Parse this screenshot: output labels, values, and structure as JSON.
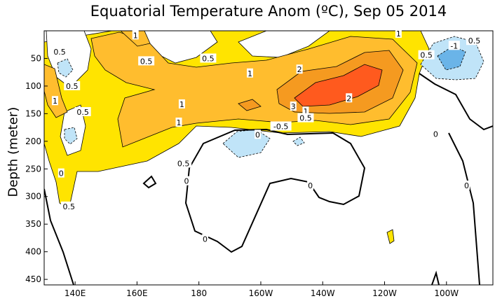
{
  "chart_data": {
    "type": "heatmap",
    "title": "Equatorial Temperature Anom (ºC), Sep 05 2014",
    "xlabel": "",
    "ylabel": "Depth (meter)",
    "xlim": [
      130,
      275
    ],
    "ylim": [
      0,
      460
    ],
    "y_inverted": true,
    "x_ticks": [
      {
        "value": 140,
        "label": "140E"
      },
      {
        "value": 160,
        "label": "160E"
      },
      {
        "value": 180,
        "label": "180"
      },
      {
        "value": 200,
        "label": "160W"
      },
      {
        "value": 220,
        "label": "140W"
      },
      {
        "value": 240,
        "label": "120W"
      },
      {
        "value": 260,
        "label": "100W"
      }
    ],
    "y_ticks": [
      {
        "value": 50,
        "label": "50"
      },
      {
        "value": 100,
        "label": "100"
      },
      {
        "value": 150,
        "label": "150"
      },
      {
        "value": 200,
        "label": "200"
      },
      {
        "value": 250,
        "label": "250"
      },
      {
        "value": 300,
        "label": "300"
      },
      {
        "value": 350,
        "label": "350"
      },
      {
        "value": 400,
        "label": "400"
      },
      {
        "value": 450,
        "label": "450"
      }
    ],
    "contour_levels": [
      -1,
      -0.5,
      0,
      0.5,
      1,
      2,
      3
    ],
    "colors": {
      "neg1": "#6ab4e8",
      "neg05": "#c0e4f8",
      "pos05": "#ffe400",
      "pos1": "#ffbd2e",
      "pos2": "#f59a20",
      "pos3": "#ff5a1e"
    },
    "contour_labels": [
      {
        "value": "1",
        "x": 159.5,
        "y": 8
      },
      {
        "value": "0.5",
        "x": 135,
        "y": 38
      },
      {
        "value": "0.5",
        "x": 163,
        "y": 55
      },
      {
        "value": "0.5",
        "x": 183,
        "y": 50
      },
      {
        "value": "0.5",
        "x": 139,
        "y": 100
      },
      {
        "value": "1",
        "x": 133.5,
        "y": 127
      },
      {
        "value": "0.5",
        "x": 142.5,
        "y": 147
      },
      {
        "value": "1",
        "x": 196.5,
        "y": 77
      },
      {
        "value": "2",
        "x": 212.5,
        "y": 70
      },
      {
        "value": "1",
        "x": 174.5,
        "y": 133
      },
      {
        "value": "1",
        "x": 173.5,
        "y": 166
      },
      {
        "value": "3",
        "x": 210.5,
        "y": 137
      },
      {
        "value": "1",
        "x": 214.5,
        "y": 146
      },
      {
        "value": "0.5",
        "x": 214.5,
        "y": 158
      },
      {
        "value": "2",
        "x": 228.5,
        "y": 122
      },
      {
        "value": "-0.5",
        "x": 206.5,
        "y": 173
      },
      {
        "value": "0.5",
        "x": 175,
        "y": 240
      },
      {
        "value": "0.5",
        "x": 138,
        "y": 318
      },
      {
        "value": "1",
        "x": 244.5,
        "y": 5
      },
      {
        "value": "0.5",
        "x": 269,
        "y": 18
      },
      {
        "value": "-1",
        "x": 262.5,
        "y": 27
      },
      {
        "value": "0.5",
        "x": 253.5,
        "y": 44
      },
      {
        "value": "0",
        "x": 135.5,
        "y": 258
      },
      {
        "value": "0",
        "x": 199,
        "y": 188
      },
      {
        "value": "0",
        "x": 176,
        "y": 272
      },
      {
        "value": "0",
        "x": 182,
        "y": 377
      },
      {
        "value": "0",
        "x": 216,
        "y": 280
      },
      {
        "value": "0",
        "x": 256.5,
        "y": 187
      },
      {
        "value": "0",
        "x": 266.5,
        "y": 280
      }
    ]
  }
}
